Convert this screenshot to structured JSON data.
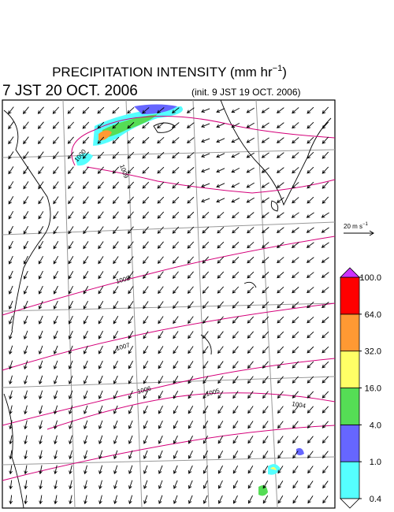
{
  "header": {
    "title": {
      "text": "PRECIPITATION INTENSITY (mm hr",
      "sup": "−1",
      "end": ")"
    },
    "valid_time": "7 JST 20 OCT. 2006",
    "init_time": "(init. 9 JST 19 OCT. 2006)"
  },
  "wind_scale": {
    "text": "20 m s",
    "sup": "−1"
  },
  "isobar_labels": [
    "1000",
    "1009",
    "1008",
    "1007",
    "1006",
    "1005",
    "1004"
  ],
  "colorbar": {
    "colors": [
      "#55ffff",
      "#6666ff",
      "#55dd55",
      "#ffff66",
      "#ff9933",
      "#ff0000"
    ],
    "over_color": "#cc33ff",
    "under_color": "#ffffff",
    "ticks": [
      {
        "value": 0.4,
        "label": "0.4"
      },
      {
        "value": 1,
        "label": "1.0"
      },
      {
        "value": 4,
        "label": "4.0"
      },
      {
        "value": 16,
        "label": "16.0"
      },
      {
        "value": 32,
        "label": "32.0"
      },
      {
        "value": 64,
        "label": "64.0"
      },
      {
        "value": 100,
        "label": "100.0"
      }
    ]
  }
}
